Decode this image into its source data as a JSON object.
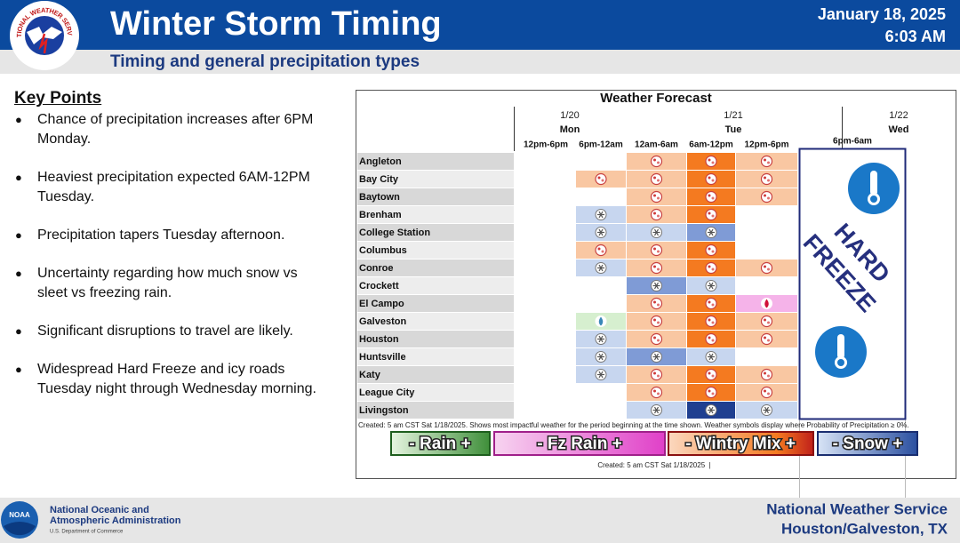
{
  "header": {
    "title": "Winter Storm Timing",
    "subtitle": "Timing and general precipitation types",
    "date": "January 18, 2025",
    "time": "6:03 AM",
    "logo_text": "NATIONAL WEATHER SERVICE"
  },
  "key_points": {
    "title": "Key Points",
    "items": [
      "Chance of precipitation increases after 6PM Monday.",
      "Heaviest precipitation expected 6AM-12PM Tuesday.",
      "Precipitation tapers Tuesday afternoon.",
      "Uncertainty regarding how much snow vs sleet vs freezing rain.",
      "Significant disruptions to travel are likely.",
      "Widespread Hard Freeze and icy roads Tuesday night through Wednesday morning."
    ]
  },
  "forecast": {
    "title": "Weather Forecast",
    "days": [
      {
        "date": "1/20",
        "day": "Mon"
      },
      {
        "date": "1/21",
        "day": "Tue"
      },
      {
        "date": "1/22",
        "day": "Wed"
      }
    ],
    "periods": [
      "12pm-6pm",
      "6pm-12am",
      "12am-6am",
      "6am-12pm",
      "12pm-6pm",
      "6pm-6am"
    ],
    "rows": [
      {
        "city": "Angleton",
        "cells": [
          null,
          null,
          "w",
          "W",
          "w"
        ]
      },
      {
        "city": "Bay City",
        "cells": [
          null,
          "w",
          "w",
          "W",
          "w"
        ]
      },
      {
        "city": "Baytown",
        "cells": [
          null,
          null,
          "w",
          "W",
          "w"
        ]
      },
      {
        "city": "Brenham",
        "cells": [
          null,
          "s",
          "w",
          "W",
          null
        ]
      },
      {
        "city": "College Station",
        "cells": [
          null,
          "s",
          "s",
          "S",
          null
        ]
      },
      {
        "city": "Columbus",
        "cells": [
          null,
          "w",
          "w",
          "W",
          null
        ]
      },
      {
        "city": "Conroe",
        "cells": [
          null,
          "s",
          "w",
          "W",
          "w"
        ]
      },
      {
        "city": "Crockett",
        "cells": [
          null,
          null,
          "S",
          "s",
          null
        ]
      },
      {
        "city": "El Campo",
        "cells": [
          null,
          null,
          "w",
          "W",
          "f"
        ]
      },
      {
        "city": "Galveston",
        "cells": [
          null,
          "r",
          "w",
          "W",
          "w"
        ]
      },
      {
        "city": "Houston",
        "cells": [
          null,
          "s",
          "w",
          "W",
          "w"
        ]
      },
      {
        "city": "Huntsville",
        "cells": [
          null,
          "s",
          "S",
          "s",
          null
        ]
      },
      {
        "city": "Katy",
        "cells": [
          null,
          "s",
          "w",
          "W",
          "w"
        ]
      },
      {
        "city": "League City",
        "cells": [
          null,
          null,
          "w",
          "W",
          "w"
        ]
      },
      {
        "city": "Livingston",
        "cells": [
          null,
          null,
          "s",
          "N",
          "s"
        ]
      }
    ],
    "overlay": [
      "HARD",
      "FREEZE"
    ],
    "footnote": "Created: 5 am CST Sat 1/18/2025. Shows most impactful weather for the period beginning at the time shown. Weather symbols display where Probability of Precipitation ≥ 0%.",
    "legend": [
      "- Rain +",
      "- Fz Rain +",
      "- Wintry Mix +",
      "- Snow +"
    ],
    "created": "Created: 5 am CST Sat 1/18/2025  |"
  },
  "footer": {
    "agency": "National Oceanic and",
    "agency2": "Atmospheric Administration",
    "department": "U.S. Department of Commerce",
    "noaa": "NOAA",
    "office": "National Weather Service",
    "location": "Houston/Galveston, TX"
  }
}
